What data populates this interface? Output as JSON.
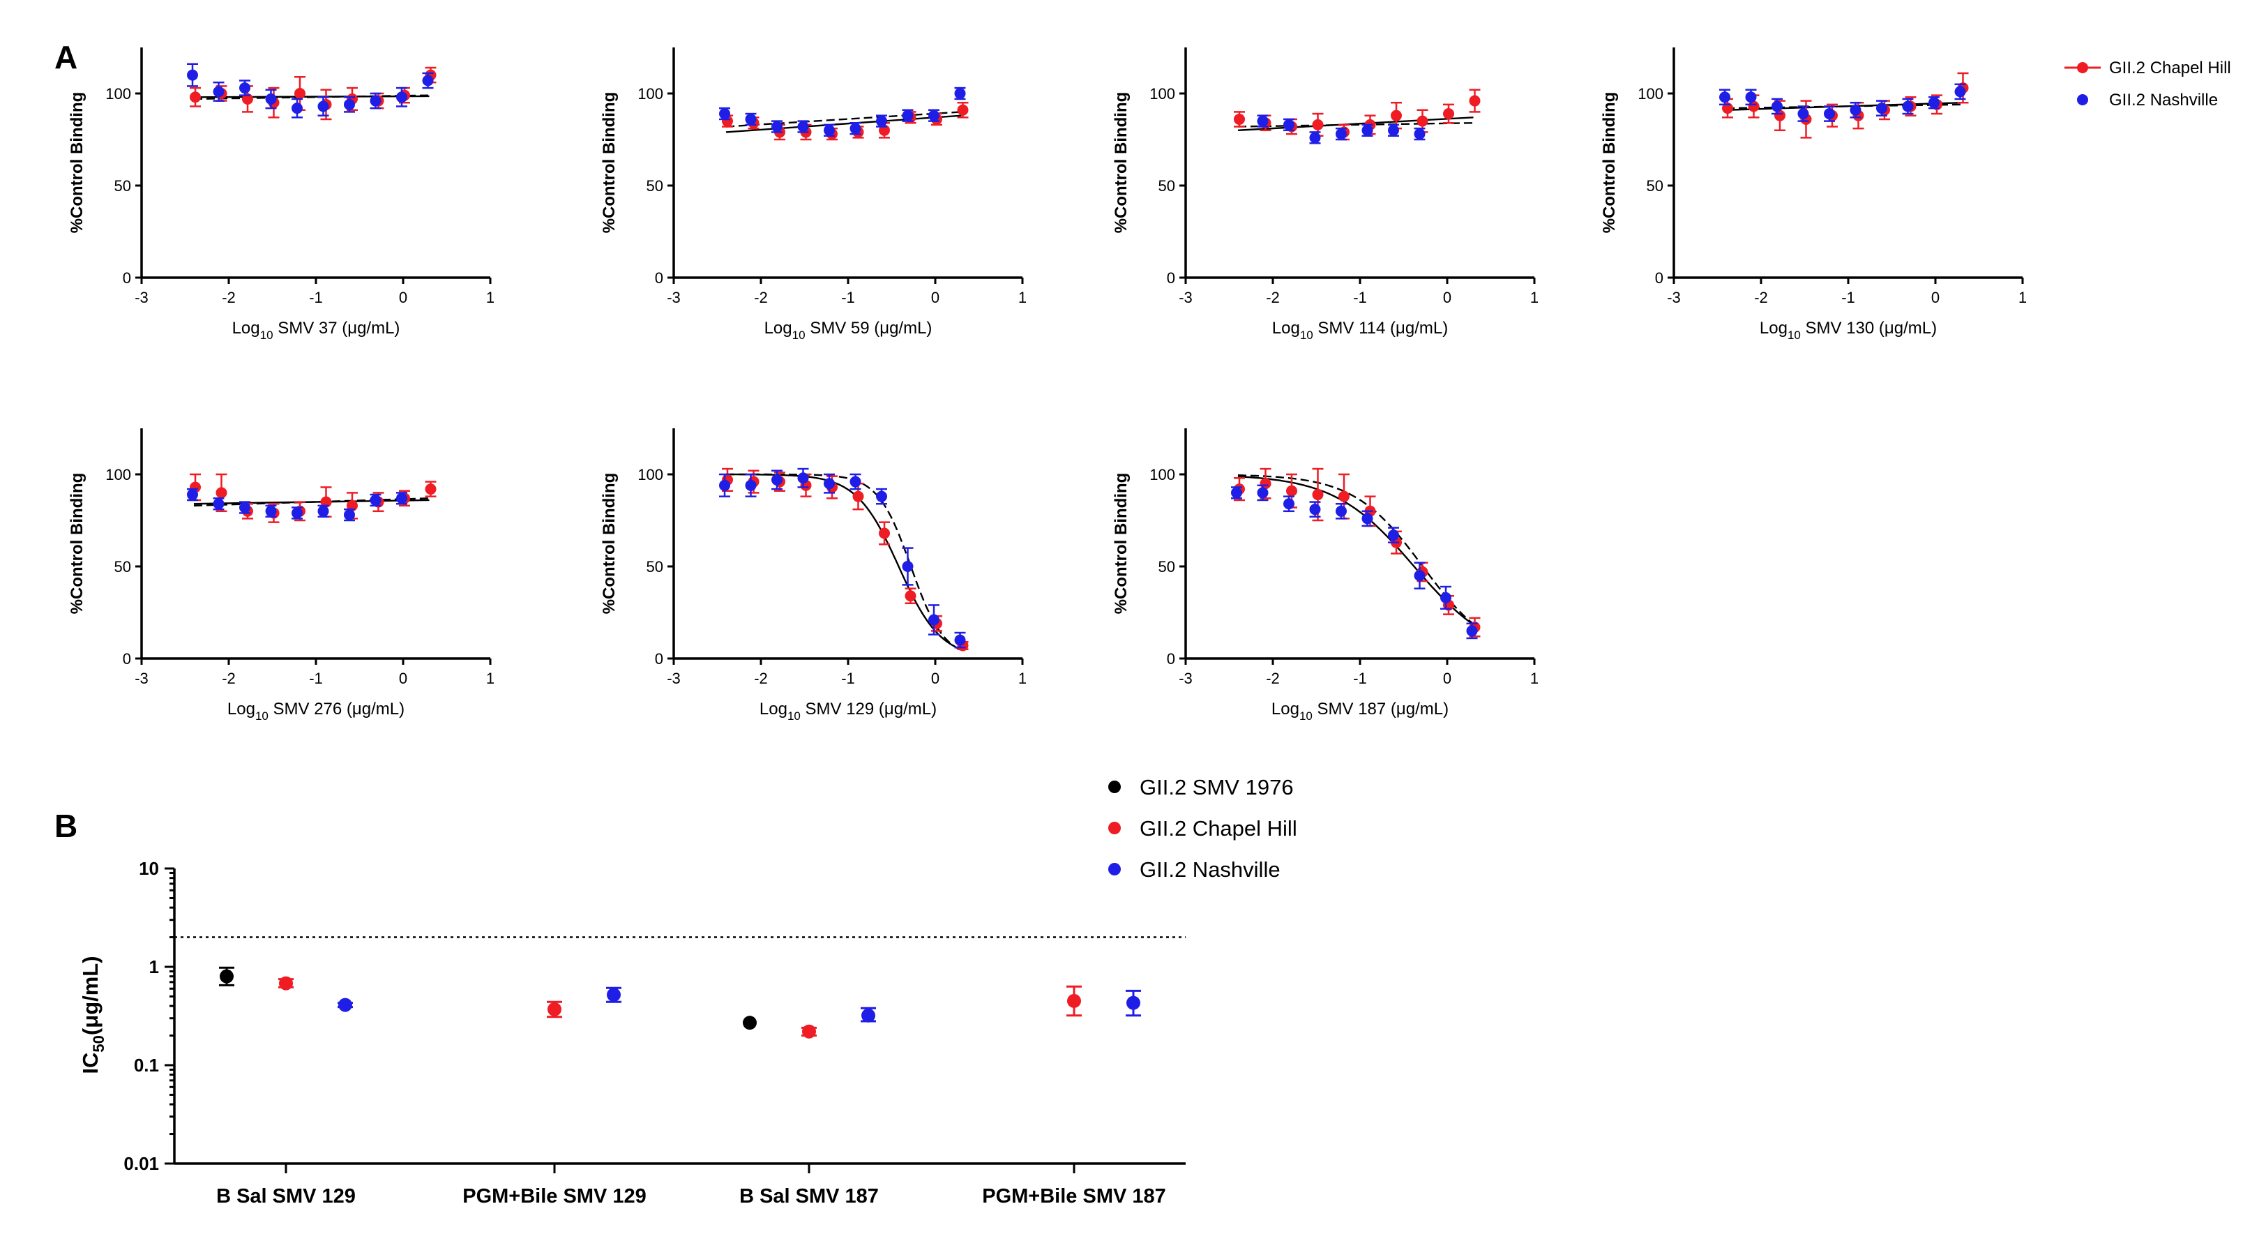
{
  "colors": {
    "chapel_hill": "#ef1c24",
    "nashville": "#1e1ee6",
    "smv1976": "#000000"
  },
  "panel_labels": {
    "a": "A",
    "b": "B"
  },
  "panel_a": {
    "ylabel": "%Control  Binding",
    "legend": {
      "chapel_hill": "GII.2 Chapel Hill",
      "nashville": "GII.2 Nashville"
    },
    "x_ticks": [
      "-3",
      "-2",
      "-1",
      "0",
      "1"
    ],
    "y_ticks": [
      "0",
      "50",
      "100"
    ]
  },
  "panel_b": {
    "legend": {
      "smv1976": "GII.2 SMV 1976",
      "chapel_hill": "GII.2 Chapel Hill",
      "nashville": "GII.2 Nashville"
    },
    "y_ticks": [
      "0.01",
      "0.1",
      "1",
      "10"
    ]
  },
  "chart_data": [
    {
      "id": "smv37",
      "type": "scatter",
      "title": "",
      "xlabel_prefix": "Log",
      "xlabel_sub": "10",
      "xlabel_suffix": " SMV 37 (μg/mL)",
      "ylabel": "%Control  Binding",
      "xlim": [
        -3,
        1
      ],
      "ylim": [
        0,
        125
      ],
      "x": [
        -2.4,
        -2.1,
        -1.8,
        -1.5,
        -1.2,
        -0.9,
        -0.6,
        -0.3,
        0.0,
        0.3
      ],
      "series": [
        {
          "name": "GII.2 Chapel Hill",
          "values": [
            98,
            100,
            97,
            95,
            100,
            94,
            97,
            96,
            99,
            110
          ],
          "errors": [
            5,
            4,
            7,
            8,
            9,
            8,
            6,
            4,
            4,
            4
          ]
        },
        {
          "name": "GII.2 Nashville",
          "values": [
            110,
            101,
            103,
            97,
            92,
            93,
            94,
            96,
            98,
            107
          ],
          "errors": [
            6,
            5,
            4,
            5,
            5,
            5,
            4,
            4,
            5,
            4
          ]
        }
      ],
      "fits": [
        {
          "type": "linear",
          "y0": 98,
          "y1": 98.5
        },
        {
          "type": "linear",
          "y0": 97,
          "y1": 99
        }
      ]
    },
    {
      "id": "smv59",
      "type": "scatter",
      "title": "",
      "xlabel_prefix": "Log",
      "xlabel_sub": "10",
      "xlabel_suffix": " SMV 59 (μg/mL)",
      "ylabel": "%Control  Binding",
      "xlim": [
        -3,
        1
      ],
      "ylim": [
        0,
        125
      ],
      "x": [
        -2.4,
        -2.1,
        -1.8,
        -1.5,
        -1.2,
        -0.9,
        -0.6,
        -0.3,
        0.0,
        0.3
      ],
      "series": [
        {
          "name": "GII.2 Chapel Hill",
          "values": [
            85,
            84,
            79,
            79,
            78,
            79,
            80,
            87,
            86,
            91
          ],
          "errors": [
            3,
            3,
            4,
            4,
            3,
            3,
            4,
            3,
            3,
            4
          ]
        },
        {
          "name": "GII.2 Nashville",
          "values": [
            89,
            86,
            82,
            82,
            80,
            81,
            85,
            88,
            88,
            100
          ],
          "errors": [
            3,
            3,
            3,
            3,
            3,
            3,
            3,
            3,
            3,
            3
          ]
        }
      ],
      "fits": [
        {
          "type": "linear",
          "y0": 79,
          "y1": 88
        },
        {
          "type": "linear",
          "y0": 82,
          "y1": 90
        }
      ]
    },
    {
      "id": "smv114",
      "type": "scatter",
      "title": "",
      "xlabel_prefix": "Log",
      "xlabel_sub": "10",
      "xlabel_suffix": " SMV 114 (μg/mL)",
      "ylabel": "%Control  Binding",
      "xlim": [
        -3,
        1
      ],
      "ylim": [
        0,
        125
      ],
      "x": [
        -2.4,
        -2.1,
        -1.8,
        -1.5,
        -1.2,
        -0.9,
        -0.6,
        -0.3,
        0.0,
        0.3
      ],
      "series": [
        {
          "name": "GII.2 Chapel Hill",
          "values": [
            86,
            84,
            82,
            83,
            79,
            83,
            88,
            85,
            89,
            96
          ],
          "errors": [
            4,
            4,
            4,
            6,
            4,
            5,
            7,
            6,
            5,
            6
          ]
        },
        {
          "name": "GII.2 Nashville",
          "values": [
            null,
            85,
            83,
            76,
            78,
            80,
            80,
            78,
            null,
            null
          ],
          "errors": [
            0,
            3,
            3,
            3,
            3,
            3,
            3,
            3,
            0,
            0
          ]
        }
      ],
      "fits": [
        {
          "type": "linear",
          "y0": 80,
          "y1": 87
        },
        {
          "type": "linear",
          "y0": 82,
          "y1": 84
        }
      ]
    },
    {
      "id": "smv130",
      "type": "scatter",
      "title": "",
      "xlabel_prefix": "Log",
      "xlabel_sub": "10",
      "xlabel_suffix": " SMV 130 (μg/mL)",
      "ylabel": "%Control  Binding",
      "xlim": [
        -3,
        1
      ],
      "ylim": [
        0,
        125
      ],
      "x": [
        -2.4,
        -2.1,
        -1.8,
        -1.5,
        -1.2,
        -0.9,
        -0.6,
        -0.3,
        0.0,
        0.3
      ],
      "series": [
        {
          "name": "GII.2 Chapel Hill",
          "values": [
            92,
            93,
            88,
            86,
            88,
            88,
            91,
            93,
            94,
            103
          ],
          "errors": [
            5,
            6,
            8,
            10,
            6,
            7,
            5,
            5,
            5,
            8
          ]
        },
        {
          "name": "GII.2 Nashville",
          "values": [
            98,
            98,
            93,
            89,
            89,
            91,
            92,
            93,
            95,
            101
          ],
          "errors": [
            4,
            4,
            4,
            4,
            4,
            4,
            4,
            4,
            3,
            4
          ]
        }
      ],
      "fits": [
        {
          "type": "linear",
          "y0": 91,
          "y1": 95
        },
        {
          "type": "linear",
          "y0": 92,
          "y1": 94
        }
      ]
    },
    {
      "id": "smv276",
      "type": "scatter",
      "title": "",
      "xlabel_prefix": "Log",
      "xlabel_sub": "10",
      "xlabel_suffix": " SMV 276 (μg/mL)",
      "ylabel": "%Control  Binding",
      "xlim": [
        -3,
        1
      ],
      "ylim": [
        0,
        125
      ],
      "x": [
        -2.4,
        -2.1,
        -1.8,
        -1.5,
        -1.2,
        -0.9,
        -0.6,
        -0.3,
        0.0,
        0.3
      ],
      "series": [
        {
          "name": "GII.2 Chapel Hill",
          "values": [
            93,
            90,
            80,
            79,
            80,
            85,
            83,
            85,
            87,
            92
          ],
          "errors": [
            7,
            10,
            4,
            5,
            5,
            8,
            7,
            5,
            4,
            4
          ]
        },
        {
          "name": "GII.2 Nashville",
          "values": [
            89,
            84,
            82,
            80,
            79,
            80,
            78,
            86,
            87,
            null
          ],
          "errors": [
            3,
            3,
            3,
            3,
            3,
            3,
            3,
            3,
            3,
            0
          ]
        }
      ],
      "fits": [
        {
          "type": "linear",
          "y0": 84,
          "y1": 86
        },
        {
          "type": "linear",
          "y0": 83,
          "y1": 87
        }
      ]
    },
    {
      "id": "smv129",
      "type": "scatter",
      "title": "",
      "xlabel_prefix": "Log",
      "xlabel_sub": "10",
      "xlabel_suffix": " SMV 129 (μg/mL)",
      "ylabel": "%Control  Binding",
      "xlim": [
        -3,
        1
      ],
      "ylim": [
        0,
        125
      ],
      "x": [
        -2.4,
        -2.1,
        -1.8,
        -1.5,
        -1.2,
        -0.9,
        -0.6,
        -0.3,
        0.0,
        0.3
      ],
      "series": [
        {
          "name": "GII.2 Chapel Hill",
          "values": [
            97,
            96,
            96,
            94,
            93,
            88,
            68,
            34,
            19,
            7
          ],
          "errors": [
            6,
            6,
            5,
            6,
            6,
            7,
            6,
            4,
            4,
            2
          ]
        },
        {
          "name": "GII.2 Nashville",
          "values": [
            94,
            94,
            97,
            98,
            95,
            96,
            88,
            50,
            21,
            10
          ],
          "errors": [
            6,
            6,
            5,
            5,
            5,
            4,
            4,
            10,
            8,
            4
          ]
        }
      ],
      "fits": [
        {
          "type": "hill",
          "top": 100,
          "bottom": 0,
          "logic50": -0.42,
          "slope": 1.8
        },
        {
          "type": "hill",
          "top": 100,
          "bottom": 0,
          "logic50": -0.28,
          "slope": 2.3
        }
      ]
    },
    {
      "id": "smv187",
      "type": "scatter",
      "title": "",
      "xlabel_prefix": "Log",
      "xlabel_sub": "10",
      "xlabel_suffix": " SMV 187 (μg/mL)",
      "ylabel": "%Control  Binding",
      "xlim": [
        -3,
        1
      ],
      "ylim": [
        0,
        125
      ],
      "x": [
        -2.4,
        -2.1,
        -1.8,
        -1.5,
        -1.2,
        -0.9,
        -0.6,
        -0.3,
        0.0,
        0.3
      ],
      "series": [
        {
          "name": "GII.2 Chapel Hill",
          "values": [
            92,
            95,
            91,
            89,
            88,
            80,
            63,
            47,
            29,
            17
          ],
          "errors": [
            6,
            8,
            9,
            14,
            12,
            8,
            6,
            5,
            5,
            5
          ]
        },
        {
          "name": "GII.2 Nashville",
          "values": [
            90,
            90,
            84,
            81,
            80,
            76,
            67,
            45,
            33,
            15
          ],
          "errors": [
            3,
            4,
            4,
            4,
            4,
            4,
            4,
            7,
            6,
            4
          ]
        }
      ],
      "fits": [
        {
          "type": "hill",
          "top": 100,
          "bottom": 0,
          "logic50": -0.38,
          "slope": 0.95
        },
        {
          "type": "hill",
          "top": 100,
          "bottom": 0,
          "logic50": -0.28,
          "slope": 1.1
        }
      ]
    },
    {
      "id": "ic50",
      "type": "scatter",
      "title": "",
      "xlabel": "",
      "ylabel_main": "IC",
      "ylabel_sub": "50",
      "ylabel_suffix": "(μg/mL)",
      "yscale": "log",
      "ylim": [
        0.01,
        10
      ],
      "reference_line": 2,
      "categories": [
        "B Sal SMV 129",
        "PGM+Bile SMV 129",
        "B Sal SMV 187",
        "PGM+Bile SMV 187"
      ],
      "series": [
        {
          "name": "GII.2 SMV 1976",
          "values": [
            0.8,
            null,
            0.27,
            null
          ],
          "err_low": [
            0.65,
            null,
            0.27,
            null
          ],
          "err_high": [
            0.98,
            null,
            0.27,
            null
          ]
        },
        {
          "name": "GII.2 Chapel Hill",
          "values": [
            0.68,
            0.37,
            0.22,
            0.45
          ],
          "err_low": [
            0.62,
            0.31,
            0.2,
            0.32
          ],
          "err_high": [
            0.75,
            0.44,
            0.24,
            0.63
          ]
        },
        {
          "name": "GII.2 Nashville",
          "values": [
            0.41,
            0.52,
            0.32,
            0.43
          ],
          "err_low": [
            0.39,
            0.44,
            0.28,
            0.32
          ],
          "err_high": [
            0.43,
            0.61,
            0.38,
            0.57
          ]
        }
      ]
    }
  ]
}
